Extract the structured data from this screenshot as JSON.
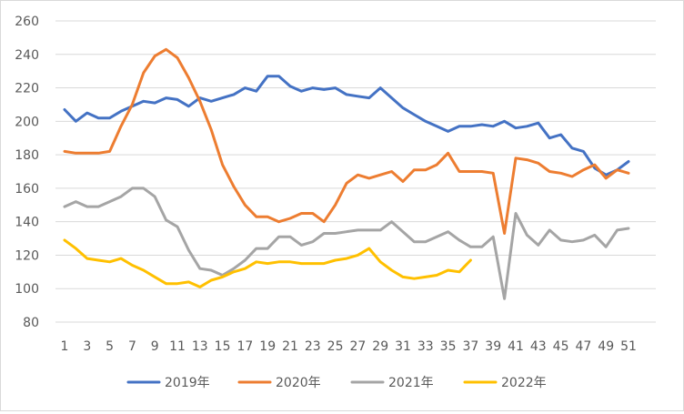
{
  "chart_data": {
    "type": "line",
    "title": "",
    "xlabel": "",
    "ylabel": "",
    "ylim": [
      80,
      260
    ],
    "yticks": [
      80,
      100,
      120,
      140,
      160,
      180,
      200,
      220,
      240,
      260
    ],
    "xlim": [
      1,
      52
    ],
    "xtick_labels": [
      "1",
      "3",
      "5",
      "7",
      "9",
      "11",
      "13",
      "15",
      "17",
      "19",
      "21",
      "23",
      "25",
      "27",
      "29",
      "31",
      "33",
      "35",
      "37",
      "39",
      "41",
      "43",
      "45",
      "47",
      "49",
      "51"
    ],
    "grid": "horizontal",
    "legend_position": "bottom",
    "series": [
      {
        "name": "2019年",
        "color": "#4472C4",
        "x": [
          1,
          2,
          3,
          4,
          5,
          6,
          7,
          8,
          9,
          10,
          11,
          12,
          13,
          14,
          15,
          16,
          17,
          18,
          19,
          20,
          21,
          22,
          23,
          24,
          25,
          26,
          27,
          28,
          29,
          30,
          31,
          32,
          33,
          34,
          35,
          36,
          37,
          38,
          39,
          40,
          41,
          42,
          43,
          44,
          45,
          46,
          47,
          48,
          49,
          50,
          51
        ],
        "values": [
          207,
          200,
          205,
          202,
          202,
          206,
          209,
          212,
          211,
          214,
          213,
          209,
          214,
          212,
          214,
          216,
          220,
          218,
          227,
          227,
          221,
          218,
          220,
          219,
          220,
          216,
          215,
          214,
          220,
          214,
          208,
          204,
          200,
          197,
          194,
          197,
          197,
          198,
          197,
          200,
          196,
          197,
          199,
          190,
          192,
          184,
          182,
          172,
          168,
          171,
          176
        ]
      },
      {
        "name": "2020年",
        "color": "#ED7D31",
        "x": [
          1,
          2,
          3,
          4,
          5,
          6,
          7,
          8,
          9,
          10,
          11,
          12,
          13,
          14,
          15,
          16,
          17,
          18,
          19,
          20,
          21,
          22,
          23,
          24,
          25,
          26,
          27,
          28,
          29,
          30,
          31,
          32,
          33,
          34,
          35,
          36,
          37,
          38,
          39,
          40,
          41,
          42,
          43,
          44,
          45,
          46,
          47,
          48,
          49,
          50,
          51
        ],
        "values": [
          182,
          181,
          181,
          181,
          182,
          197,
          210,
          229,
          239,
          243,
          238,
          226,
          212,
          195,
          174,
          161,
          150,
          143,
          143,
          140,
          142,
          145,
          145,
          140,
          150,
          163,
          168,
          166,
          168,
          170,
          164,
          171,
          171,
          174,
          181,
          170,
          170,
          170,
          169,
          133,
          178,
          177,
          175,
          170,
          169,
          167,
          171,
          174,
          166,
          171,
          169
        ]
      },
      {
        "name": "2021年",
        "color": "#A5A5A5",
        "x": [
          1,
          2,
          3,
          4,
          5,
          6,
          7,
          8,
          9,
          10,
          11,
          12,
          13,
          14,
          15,
          16,
          17,
          18,
          19,
          20,
          21,
          22,
          23,
          24,
          25,
          26,
          27,
          28,
          29,
          30,
          31,
          32,
          33,
          34,
          35,
          36,
          37,
          38,
          39,
          40,
          41,
          42,
          43,
          44,
          45,
          46,
          47,
          48,
          49,
          50,
          51
        ],
        "values": [
          149,
          152,
          149,
          149,
          152,
          155,
          160,
          160,
          155,
          141,
          137,
          123,
          112,
          111,
          108,
          112,
          117,
          124,
          124,
          131,
          131,
          126,
          128,
          133,
          133,
          134,
          135,
          135,
          135,
          140,
          134,
          128,
          128,
          131,
          134,
          129,
          125,
          125,
          131,
          94,
          145,
          132,
          126,
          135,
          129,
          128,
          129,
          132,
          125,
          135,
          136
        ]
      },
      {
        "name": "2022年",
        "color": "#FFC000",
        "x": [
          1,
          2,
          3,
          4,
          5,
          6,
          7,
          8,
          9,
          10,
          11,
          12,
          13,
          14,
          15,
          16,
          17,
          18,
          19,
          20,
          21,
          22,
          23,
          24,
          25,
          26,
          27,
          28,
          29,
          30,
          31,
          32,
          33,
          34,
          35,
          36,
          37
        ],
        "values": [
          129,
          124,
          118,
          117,
          116,
          118,
          114,
          111,
          107,
          103,
          103,
          104,
          101,
          105,
          107,
          110,
          112,
          116,
          115,
          116,
          116,
          115,
          115,
          115,
          117,
          118,
          120,
          124,
          116,
          111,
          107,
          106,
          107,
          108,
          111,
          110,
          117
        ]
      }
    ]
  }
}
